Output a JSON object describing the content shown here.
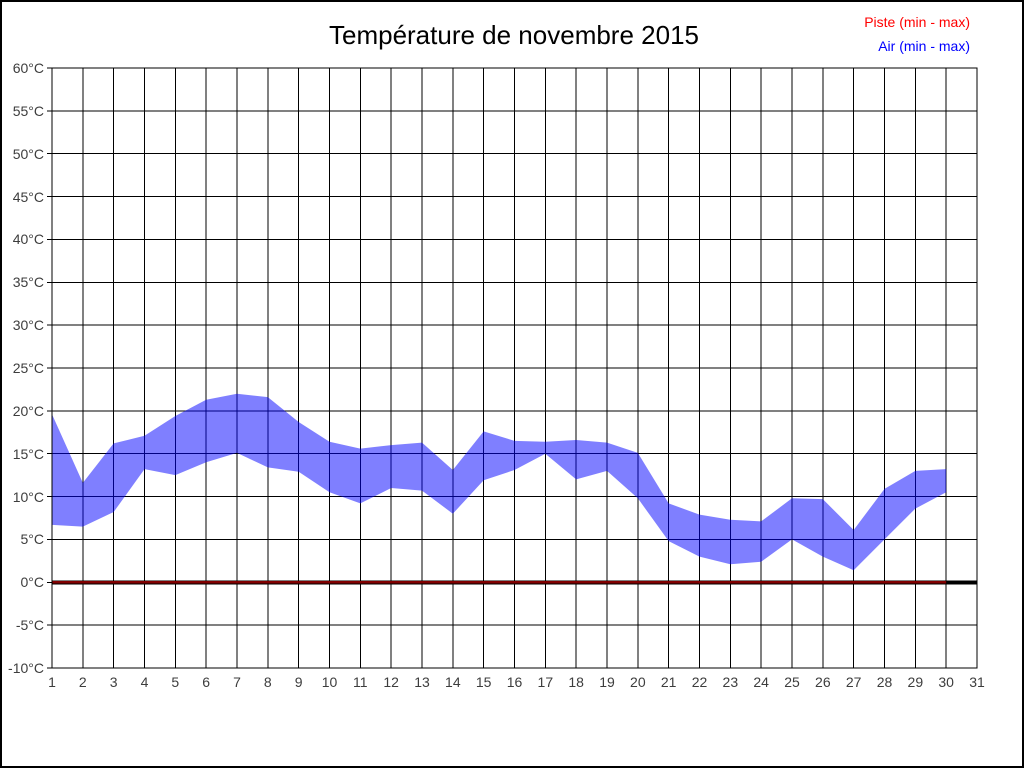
{
  "title": "Température de novembre 2015",
  "legend": {
    "items": [
      {
        "label": "Piste (min - max)",
        "color": "#ff0000"
      },
      {
        "label": "Air (min - max)",
        "color": "#0000ff"
      }
    ]
  },
  "colors": {
    "grid": "#000000",
    "axis_text": "#3d3d3d",
    "zero_line": "#000000",
    "band_fill": "#0000ff",
    "band_opacity": 0.5,
    "piste_line": "#ff0000",
    "piste_opacity": 0.5
  },
  "chart_data": {
    "type": "area",
    "title": "Température de novembre 2015",
    "xlabel": "",
    "ylabel": "°C",
    "xlim": [
      1,
      31
    ],
    "ylim": [
      -10,
      60
    ],
    "grid": true,
    "legend_position": "top-right",
    "zero_line_value": 0,
    "x_tick_labels": [
      "1",
      "2",
      "3",
      "4",
      "5",
      "6",
      "7",
      "8",
      "9",
      "10",
      "11",
      "12",
      "13",
      "14",
      "15",
      "16",
      "17",
      "18",
      "19",
      "20",
      "21",
      "22",
      "23",
      "24",
      "25",
      "26",
      "27",
      "28",
      "29",
      "30",
      "31"
    ],
    "y_tick_labels": [
      "60°C",
      "55°C",
      "50°C",
      "45°C",
      "40°C",
      "35°C",
      "30°C",
      "25°C",
      "20°C",
      "15°C",
      "10°C",
      "5°C",
      "0°C",
      "-5°C",
      "-10°C"
    ],
    "y_tick_values": [
      60,
      55,
      50,
      45,
      40,
      35,
      30,
      25,
      20,
      15,
      10,
      5,
      0,
      -5,
      -10
    ],
    "x": [
      1,
      2,
      3,
      4,
      5,
      6,
      7,
      8,
      9,
      10,
      11,
      12,
      13,
      14,
      15,
      16,
      17,
      18,
      19,
      20,
      21,
      22,
      23,
      24,
      25,
      26,
      27,
      28,
      29,
      30
    ],
    "series": [
      {
        "name": "Piste (min - max)",
        "color": "#ff0000",
        "min": [
          0,
          0,
          0,
          0,
          0,
          0,
          0,
          0,
          0,
          0,
          0,
          0,
          0,
          0,
          0,
          0,
          0,
          0,
          0,
          0,
          0,
          0,
          0,
          0,
          0,
          0,
          0,
          0,
          0,
          0
        ],
        "max": [
          0,
          0,
          0,
          0,
          0,
          0,
          0,
          0,
          0,
          0,
          0,
          0,
          0,
          0,
          0,
          0,
          0,
          0,
          0,
          0,
          0,
          0,
          0,
          0,
          0,
          0,
          0,
          0,
          0,
          0
        ]
      },
      {
        "name": "Air (min - max)",
        "color": "#0000ff",
        "min": [
          6.7,
          6.5,
          8.2,
          13.2,
          12.5,
          14.0,
          15.1,
          13.4,
          12.9,
          10.5,
          9.2,
          11.0,
          10.7,
          8.0,
          11.9,
          13.1,
          15.0,
          12.0,
          13.0,
          9.8,
          4.8,
          3.0,
          2.1,
          2.4,
          5.0,
          3.0,
          1.4,
          5.0,
          8.6,
          10.5
        ],
        "max": [
          19.6,
          11.6,
          16.2,
          17.1,
          19.4,
          21.3,
          22.0,
          21.6,
          18.7,
          16.4,
          15.6,
          16.0,
          16.3,
          13.1,
          17.6,
          16.5,
          16.4,
          16.6,
          16.3,
          15.1,
          9.2,
          7.9,
          7.3,
          7.1,
          9.8,
          9.7,
          6.1,
          10.9,
          13.0,
          13.2
        ]
      }
    ]
  }
}
